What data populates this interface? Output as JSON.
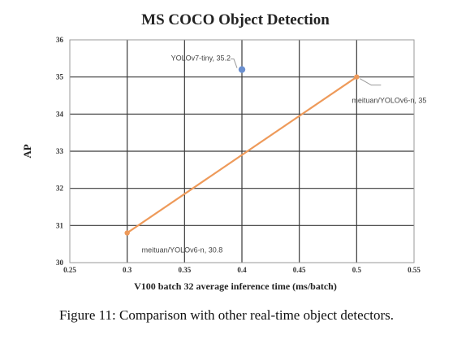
{
  "chart_data": {
    "type": "scatter",
    "title": "MS COCO Object Detection",
    "xlabel": "V100 batch 32 average inference time (ms/batch)",
    "ylabel": "AP",
    "xlim": [
      0.25,
      0.55
    ],
    "ylim": [
      30,
      36
    ],
    "xticks": [
      "0.25",
      "0.3",
      "0.35",
      "0.4",
      "0.45",
      "0.5",
      "0.55"
    ],
    "yticks": [
      "30",
      "31",
      "32",
      "33",
      "34",
      "35",
      "36"
    ],
    "grid": true,
    "series": [
      {
        "name": "meituan/YOLOv6-n",
        "color": "#ee9a5a",
        "mode": "line+markers",
        "points": [
          {
            "x": 0.3,
            "y": 30.8,
            "label": "meituan/YOLOv6-n, 30.8"
          },
          {
            "x": 0.5,
            "y": 35.0,
            "label": "meituan/YOLOv6-n, 35"
          }
        ]
      },
      {
        "name": "YOLOv7-tiny",
        "color": "#6a8fd0",
        "mode": "markers",
        "points": [
          {
            "x": 0.4,
            "y": 35.2,
            "label": "YOLOv7-tiny, 35.2"
          }
        ]
      }
    ]
  },
  "caption": "Figure 11: Comparison with other real-time object detectors."
}
